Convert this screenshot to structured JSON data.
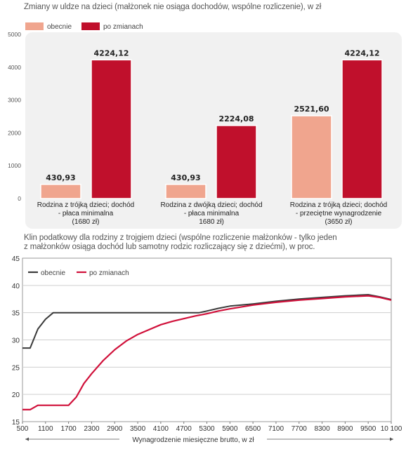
{
  "chart_data": [
    {
      "type": "bar",
      "title": "Zmiany w uldze na dzieci (małżonek nie osiąga dochodów, wspólne rozliczenie), w zł",
      "legend_placement": "top-left",
      "grid": false,
      "ylim": [
        0,
        5000
      ],
      "yticks": [
        "0",
        "1000",
        "2000",
        "3000",
        "4000",
        "5000"
      ],
      "categories": [
        [
          "Rodzina z trójką dzieci; dochód",
          "- płaca minimalna",
          "(1680 zł)"
        ],
        [
          "Rodzina z dwójką dzieci; dochód",
          "- płaca minimalna",
          "1680 zł)"
        ],
        [
          "Rodzina z trójką dzieci; dochód",
          "- przeciętne wynagrodzenie",
          "(3650 zł)"
        ]
      ],
      "series": [
        {
          "name": "obecnie",
          "color": "#f0a58e",
          "values": [
            430.93,
            430.93,
            2521.6
          ],
          "labels": [
            "430,93",
            "430,93",
            "2521,60"
          ]
        },
        {
          "name": "po zmianach",
          "color": "#c0102c",
          "values": [
            4224.12,
            2224.08,
            4224.12
          ],
          "labels": [
            "4224,12",
            "2224,08",
            "4224,12"
          ]
        }
      ]
    },
    {
      "type": "line",
      "title_lines": [
        "Klin podatkowy dla rodziny z trojgiem dzieci (wspólne rozliczenie małżonków - tylko jeden",
        "z małżonków osiąga dochód lub samotny rodzic rozliczający się z dziećmi), w proc."
      ],
      "xlabel": "Wynagrodzenie miesięczne brutto, w zł",
      "ylim": [
        15,
        45
      ],
      "yticks": [
        "15",
        "20",
        "25",
        "30",
        "35",
        "40",
        "45"
      ],
      "xlim": [
        500,
        10100
      ],
      "xticks": [
        500,
        1100,
        1700,
        2300,
        2900,
        3500,
        4100,
        4700,
        5300,
        5900,
        6500,
        7100,
        7700,
        8300,
        8900,
        9500,
        10100
      ],
      "xtick_labels": [
        "500",
        "1100",
        "1700",
        "2300",
        "2900",
        "3500",
        "4100",
        "4700",
        "5300",
        "5900",
        "6500",
        "7100",
        "7700",
        "8300",
        "8900",
        "9500",
        "10 100"
      ],
      "grid": true,
      "legend_placement": "top-left",
      "series": [
        {
          "name": "obecnie",
          "color": "#3a3a3a",
          "x": [
            500,
            700,
            900,
            1100,
            1300,
            1500,
            1700,
            2300,
            2900,
            3500,
            4100,
            4700,
            5100,
            5300,
            5600,
            5900,
            6500,
            7100,
            7700,
            8300,
            8900,
            9500,
            9800,
            10100
          ],
          "y": [
            28.5,
            28.5,
            32,
            33.8,
            35,
            35,
            35,
            35,
            35,
            35,
            35,
            35,
            35,
            35.3,
            35.8,
            36.2,
            36.6,
            37.1,
            37.5,
            37.8,
            38.1,
            38.3,
            37.9,
            37.4
          ]
        },
        {
          "name": "po zmianach",
          "color": "#d0103a",
          "x": [
            500,
            700,
            900,
            1100,
            1300,
            1500,
            1700,
            1900,
            2100,
            2300,
            2600,
            2900,
            3200,
            3500,
            3800,
            4100,
            4400,
            4700,
            5000,
            5300,
            5600,
            5900,
            6500,
            7100,
            7700,
            8300,
            8900,
            9500,
            9800,
            10100
          ],
          "y": [
            17.2,
            17.2,
            18,
            18,
            18,
            18,
            18,
            19.5,
            22,
            23.8,
            26.2,
            28.2,
            29.8,
            31,
            31.9,
            32.8,
            33.4,
            33.9,
            34.4,
            34.8,
            35.3,
            35.7,
            36.4,
            36.9,
            37.3,
            37.6,
            37.9,
            38.1,
            37.8,
            37.3
          ]
        }
      ]
    }
  ]
}
